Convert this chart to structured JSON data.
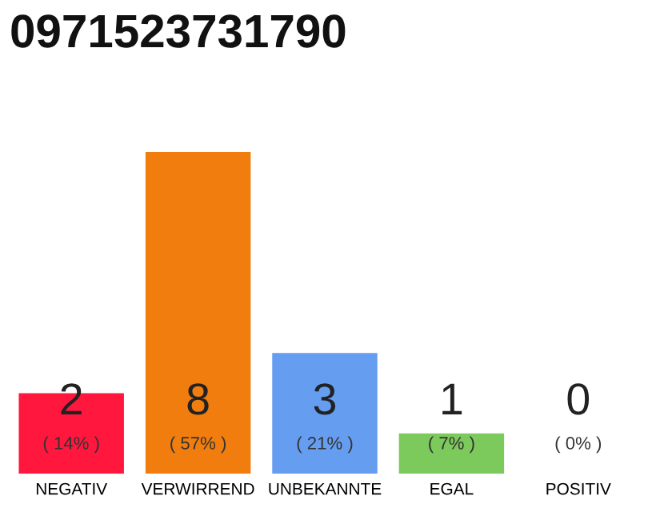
{
  "chart_data": {
    "type": "bar",
    "title": "0971523731790",
    "categories": [
      "NEGATIV",
      "VERWIRREND",
      "UNBEKANNTE",
      "EGAL",
      "POSITIV"
    ],
    "values": [
      2,
      8,
      3,
      1,
      0
    ],
    "colors": [
      "#ff173d",
      "#f07d0e",
      "#659df0",
      "#7cc95c",
      "#2ea84a"
    ],
    "data_labels": true,
    "annotations": [
      "( 14% )",
      "( 57% )",
      "( 21% )",
      "( 7% )",
      "( 0% )"
    ]
  }
}
